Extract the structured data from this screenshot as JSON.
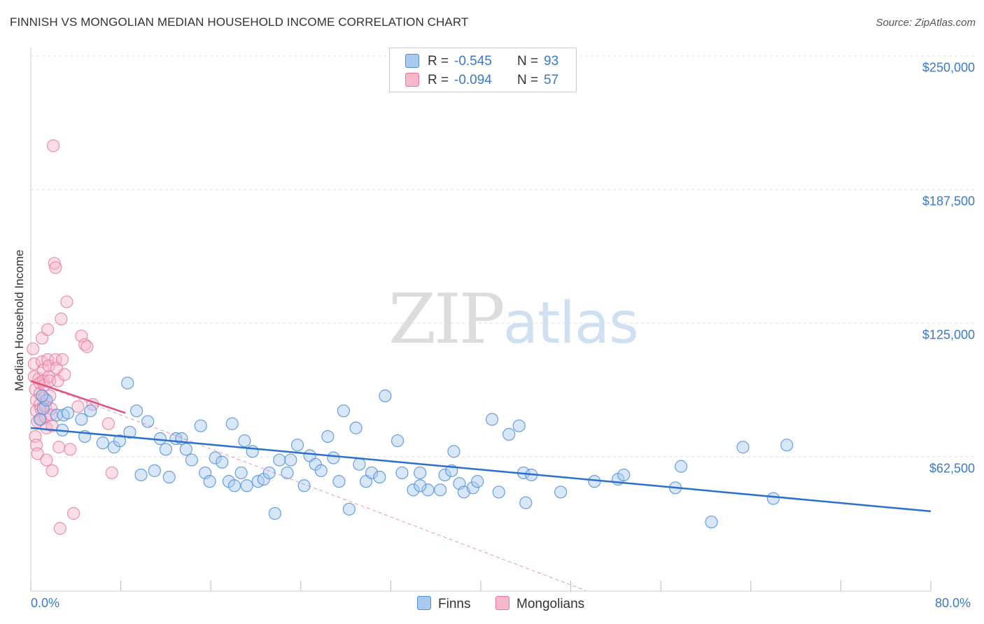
{
  "header": {
    "title": "FINNISH VS MONGOLIAN MEDIAN HOUSEHOLD INCOME CORRELATION CHART",
    "source": "Source: ZipAtlas.com"
  },
  "watermark": {
    "zip": "ZIP",
    "atlas": "atlas"
  },
  "legend": {
    "rows": [
      {
        "r_label": "R =",
        "r_value": "-0.545",
        "n_label": "N =",
        "n_value": "93"
      },
      {
        "r_label": "R =",
        "r_value": "-0.094",
        "n_label": "N =",
        "n_value": "57"
      }
    ]
  },
  "bottom_legend": {
    "finns": "Finns",
    "mongolians": "Mongolians"
  },
  "colors": {
    "finns_fill": "#a9c9f0",
    "finns_stroke": "#4f8fdb",
    "finns_line": "#2b6fd0",
    "mongolians_fill": "#f7b8cc",
    "mongolians_stroke": "#e7779b",
    "mongolians_line": "#e0507e",
    "tick_text": "#3a78d0",
    "grid": "#dddddd"
  },
  "chart_data": {
    "type": "scatter",
    "title": "FINNISH VS MONGOLIAN MEDIAN HOUSEHOLD INCOME CORRELATION CHART",
    "xlabel": "",
    "ylabel": "Median Household Income",
    "xlim": [
      0,
      80
    ],
    "ylim": [
      0,
      250000
    ],
    "x_tick_labels": [
      "0.0%",
      "80.0%"
    ],
    "y_tick_labels": [
      "$62,500",
      "$125,000",
      "$187,500",
      "$250,000"
    ],
    "y_ticks": [
      62500,
      125000,
      187500,
      250000
    ],
    "grid": true,
    "series": [
      {
        "name": "Finns",
        "r": -0.545,
        "n": 93,
        "trend": {
          "x": [
            0,
            80
          ],
          "y": [
            76000,
            37000
          ]
        },
        "points": [
          [
            1.1,
            85000
          ],
          [
            1.4,
            89000
          ],
          [
            2.3,
            82000
          ],
          [
            2.9,
            82000
          ],
          [
            3.3,
            83000
          ],
          [
            4.5,
            80000
          ],
          [
            5.3,
            84000
          ],
          [
            2.8,
            75000
          ],
          [
            4.8,
            72000
          ],
          [
            6.4,
            69000
          ],
          [
            7.4,
            67000
          ],
          [
            7.9,
            70000
          ],
          [
            8.6,
            97000
          ],
          [
            8.8,
            74000
          ],
          [
            9.4,
            84000
          ],
          [
            10.4,
            79000
          ],
          [
            11.5,
            71000
          ],
          [
            11.0,
            56000
          ],
          [
            9.8,
            54000
          ],
          [
            12.0,
            66000
          ],
          [
            12.3,
            53000
          ],
          [
            12.9,
            71000
          ],
          [
            13.4,
            71000
          ],
          [
            13.8,
            66000
          ],
          [
            14.3,
            61000
          ],
          [
            15.1,
            77000
          ],
          [
            15.5,
            55000
          ],
          [
            15.9,
            51000
          ],
          [
            16.4,
            62000
          ],
          [
            17.0,
            60000
          ],
          [
            17.6,
            51000
          ],
          [
            17.9,
            78000
          ],
          [
            18.1,
            49000
          ],
          [
            18.7,
            55000
          ],
          [
            19.2,
            49000
          ],
          [
            19.7,
            65000
          ],
          [
            20.2,
            51000
          ],
          [
            20.7,
            52000
          ],
          [
            21.2,
            55000
          ],
          [
            21.7,
            36000
          ],
          [
            22.1,
            61000
          ],
          [
            22.8,
            55000
          ],
          [
            23.1,
            61000
          ],
          [
            23.7,
            68000
          ],
          [
            24.3,
            49000
          ],
          [
            24.8,
            63000
          ],
          [
            25.3,
            59000
          ],
          [
            25.8,
            56000
          ],
          [
            26.4,
            72000
          ],
          [
            26.9,
            62000
          ],
          [
            27.4,
            51000
          ],
          [
            27.8,
            84000
          ],
          [
            28.3,
            38000
          ],
          [
            28.9,
            76000
          ],
          [
            29.2,
            59000
          ],
          [
            29.8,
            51000
          ],
          [
            30.3,
            55000
          ],
          [
            31.0,
            53000
          ],
          [
            31.5,
            91000
          ],
          [
            32.6,
            70000
          ],
          [
            33.0,
            55000
          ],
          [
            34.0,
            47000
          ],
          [
            34.6,
            55000
          ],
          [
            35.3,
            47000
          ],
          [
            36.8,
            54000
          ],
          [
            37.4,
            56000
          ],
          [
            37.6,
            65000
          ],
          [
            38.1,
            50000
          ],
          [
            38.5,
            46000
          ],
          [
            39.3,
            48000
          ],
          [
            39.7,
            51000
          ],
          [
            41.0,
            80000
          ],
          [
            41.6,
            46000
          ],
          [
            42.5,
            73000
          ],
          [
            43.4,
            77000
          ],
          [
            43.8,
            55000
          ],
          [
            44.0,
            41000
          ],
          [
            44.5,
            54000
          ],
          [
            47.1,
            46000
          ],
          [
            50.1,
            51000
          ],
          [
            52.2,
            52000
          ],
          [
            52.7,
            54000
          ],
          [
            57.3,
            48000
          ],
          [
            57.8,
            58000
          ],
          [
            60.5,
            32000
          ],
          [
            63.3,
            67000
          ],
          [
            66.0,
            43000
          ],
          [
            67.2,
            68000
          ],
          [
            36.4,
            47000
          ],
          [
            1.0,
            91000
          ],
          [
            0.8,
            80000
          ],
          [
            34.6,
            49000
          ],
          [
            19.0,
            70000
          ]
        ]
      },
      {
        "name": "Mongolians",
        "r": -0.094,
        "n": 57,
        "trend": {
          "x": [
            0,
            8.4
          ],
          "y": [
            98000,
            83000
          ]
        },
        "trend_extended": {
          "x": [
            0,
            49.3
          ],
          "y": [
            98000,
            0
          ]
        },
        "points": [
          [
            0.2,
            113000
          ],
          [
            0.3,
            106000
          ],
          [
            0.3,
            100000
          ],
          [
            0.4,
            94000
          ],
          [
            0.5,
            89000
          ],
          [
            0.5,
            84000
          ],
          [
            0.6,
            79000
          ],
          [
            0.4,
            72000
          ],
          [
            0.5,
            68000
          ],
          [
            0.6,
            64000
          ],
          [
            0.7,
            99000
          ],
          [
            0.8,
            97000
          ],
          [
            0.8,
            92000
          ],
          [
            0.8,
            87000
          ],
          [
            0.9,
            85000
          ],
          [
            0.9,
            80000
          ],
          [
            1.0,
            118000
          ],
          [
            1.0,
            107000
          ],
          [
            1.1,
            103000
          ],
          [
            1.1,
            98000
          ],
          [
            1.2,
            96000
          ],
          [
            1.2,
            90000
          ],
          [
            1.3,
            86000
          ],
          [
            1.3,
            81000
          ],
          [
            1.4,
            76000
          ],
          [
            1.4,
            61000
          ],
          [
            1.5,
            122000
          ],
          [
            1.5,
            108000
          ],
          [
            1.6,
            105000
          ],
          [
            1.6,
            100000
          ],
          [
            1.7,
            98000
          ],
          [
            1.7,
            91000
          ],
          [
            1.8,
            85000
          ],
          [
            1.8,
            82000
          ],
          [
            1.9,
            77000
          ],
          [
            1.9,
            56000
          ],
          [
            2.0,
            208000
          ],
          [
            2.1,
            153000
          ],
          [
            2.2,
            151000
          ],
          [
            2.2,
            108000
          ],
          [
            2.3,
            104000
          ],
          [
            2.4,
            98000
          ],
          [
            2.5,
            67000
          ],
          [
            2.6,
            29000
          ],
          [
            2.7,
            127000
          ],
          [
            2.8,
            108000
          ],
          [
            3.0,
            101000
          ],
          [
            3.2,
            135000
          ],
          [
            3.5,
            66000
          ],
          [
            3.8,
            36000
          ],
          [
            4.2,
            86000
          ],
          [
            4.5,
            119000
          ],
          [
            4.8,
            115000
          ],
          [
            5.0,
            114000
          ],
          [
            5.5,
            87000
          ],
          [
            6.9,
            78000
          ],
          [
            7.2,
            55000
          ]
        ]
      }
    ]
  }
}
